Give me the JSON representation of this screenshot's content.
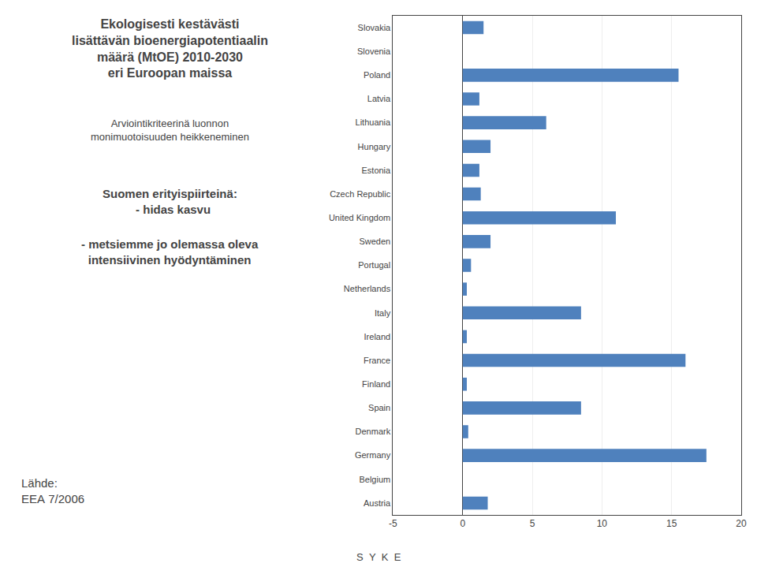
{
  "chart_data": {
    "type": "bar",
    "orientation": "horizontal",
    "title": [
      "Ekologisesti kestävästi",
      "lisättävän bioenergiapotentiaalin",
      "määrä (MtOE) 2010-2030",
      "eri Euroopan maissa"
    ],
    "subtitle": [
      "Arviointikriteerinä luonnon",
      "monimuotoisuuden heikkeneminen"
    ],
    "annotations": [
      [
        "Suomen erityispiirteinä:",
        "  - hidas kasvu"
      ],
      [
        "- metsiemme jo olemassa oleva",
        "intensiivinen hyödyntäminen"
      ],
      [
        "Lähde:",
        "EEA 7/2006"
      ],
      [
        "S  Y  K  E"
      ]
    ],
    "categories": [
      "Slovakia",
      "Slovenia",
      "Poland",
      "Latvia",
      "Lithuania",
      "Hungary",
      "Estonia",
      "Czech Republic",
      "United Kingdom",
      "Sweden",
      "Portugal",
      "Netherlands",
      "Italy",
      "Ireland",
      "France",
      "Finland",
      "Spain",
      "Denmark",
      "Germany",
      "Belgium",
      "Austria"
    ],
    "values": [
      1.5,
      0.0,
      15.5,
      1.2,
      6.0,
      2.0,
      1.2,
      1.3,
      11.0,
      2.0,
      0.6,
      0.3,
      8.5,
      0.3,
      16.0,
      0.3,
      8.5,
      0.4,
      17.5,
      0.0,
      1.8
    ],
    "color": "#4f81bd",
    "xlim": [
      -5,
      20
    ],
    "xticks": [
      -5,
      0,
      5,
      10,
      15,
      20
    ],
    "grid": true
  }
}
